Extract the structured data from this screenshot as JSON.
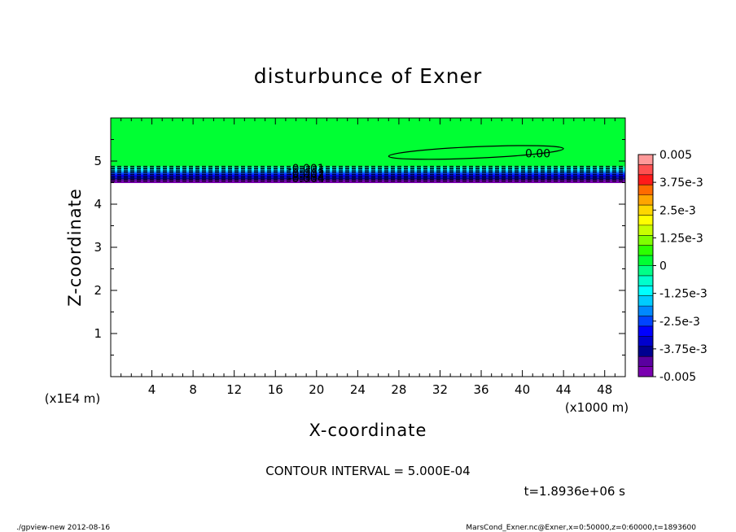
{
  "chart_data": {
    "type": "heatmap",
    "title": "disturbunce of Exner",
    "xlabel": "X-coordinate",
    "ylabel": "Z-coordinate",
    "x_unit": "(x1000 m)",
    "y_unit": "(x1E4 m)",
    "xlim": [
      0,
      50
    ],
    "ylim": [
      0,
      6
    ],
    "x_ticks": [
      4,
      8,
      12,
      16,
      20,
      24,
      28,
      32,
      36,
      40,
      44,
      48
    ],
    "y_ticks": [
      1,
      2,
      3,
      4,
      5
    ],
    "contour_interval_text": "CONTOUR INTERVAL = 5.000E-04",
    "time_text": "t=1.8936e+06 s",
    "contour_labels": [
      {
        "text": "0.00",
        "x": 41.5,
        "z": 5.18
      },
      {
        "text": "-0.001",
        "x": 19.0,
        "z": 4.83
      },
      {
        "text": "-0.002",
        "x": 19.0,
        "z": 4.71
      },
      {
        "text": "-0.004",
        "x": 19.0,
        "z": 4.6
      }
    ],
    "colorbar": {
      "range": [
        -0.005,
        0.005
      ],
      "tick_labels": [
        "0.005",
        "3.75e-3",
        "2.5e-3",
        "1.25e-3",
        "0",
        "-1.25e-3",
        "-2.5e-3",
        "-3.75e-3",
        "-0.005"
      ],
      "colors": [
        "#ff9999",
        "#ff5050",
        "#ff1a1a",
        "#ff6a00",
        "#ffa500",
        "#ffd700",
        "#ffff00",
        "#c8ff00",
        "#7fff00",
        "#2cff00",
        "#00ff33",
        "#00ff88",
        "#00ffcc",
        "#00ffff",
        "#00ccff",
        "#0088ff",
        "#0044ff",
        "#0000ff",
        "#0000cc",
        "#000090",
        "#5a00a0",
        "#7a00b0"
      ]
    },
    "bands": [
      {
        "z_top": 6.0,
        "z_bot": 4.88,
        "color": "#00ff33"
      },
      {
        "z_top": 4.88,
        "z_bot": 4.85,
        "color": "#00ff88"
      },
      {
        "z_top": 4.85,
        "z_bot": 4.82,
        "color": "#00ffcc"
      },
      {
        "z_top": 4.82,
        "z_bot": 4.79,
        "color": "#00ffff"
      },
      {
        "z_top": 4.79,
        "z_bot": 4.76,
        "color": "#00ccff"
      },
      {
        "z_top": 4.76,
        "z_bot": 4.73,
        "color": "#0088ff"
      },
      {
        "z_top": 4.73,
        "z_bot": 4.69,
        "color": "#0044ff"
      },
      {
        "z_top": 4.69,
        "z_bot": 4.65,
        "color": "#0000ff"
      },
      {
        "z_top": 4.65,
        "z_bot": 4.61,
        "color": "#0000cc"
      },
      {
        "z_top": 4.61,
        "z_bot": 4.57,
        "color": "#000090"
      },
      {
        "z_top": 4.57,
        "z_bot": 4.53,
        "color": "#5a00a0"
      },
      {
        "z_top": 4.53,
        "z_bot": 4.49,
        "color": "#7a00b0"
      }
    ]
  },
  "footer": {
    "left": "./gpview-new  2012-08-16",
    "right": "MarsCond_Exner.nc@Exner,x=0:50000,z=0:60000,t=1893600"
  },
  "colors": {
    "axis": "#000000",
    "background": "#ffffff"
  }
}
